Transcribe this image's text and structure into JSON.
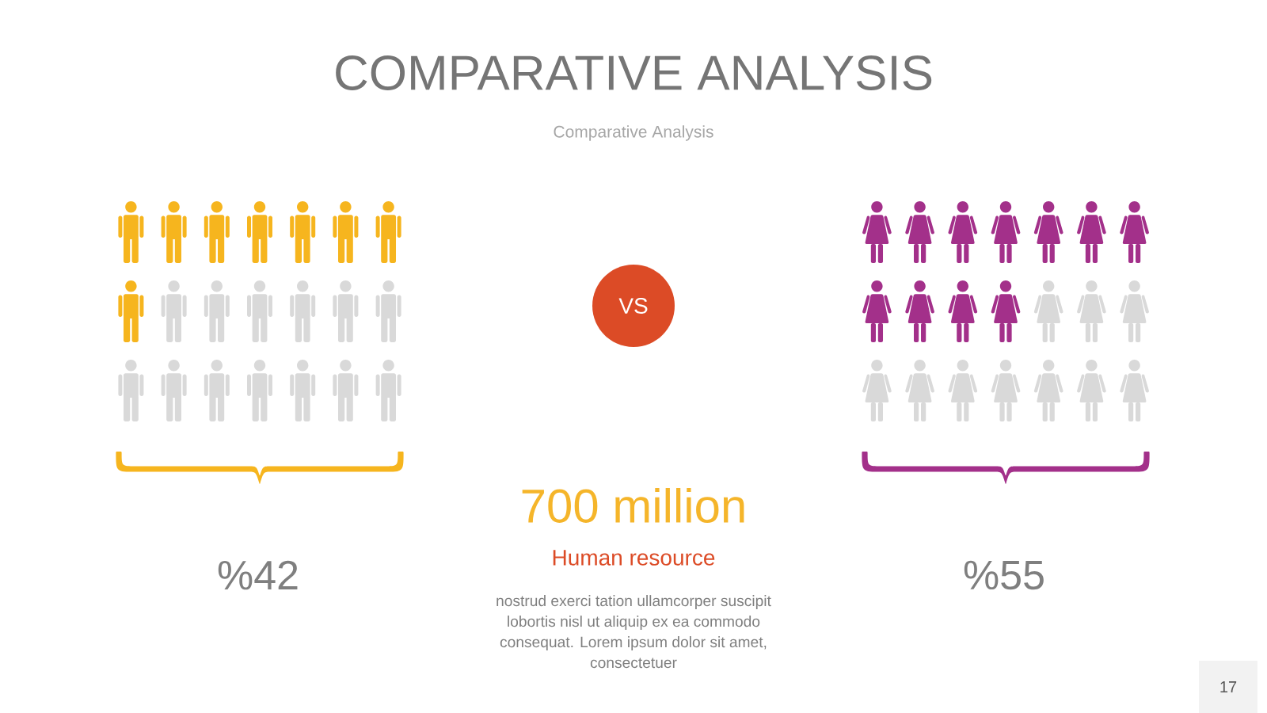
{
  "chart_data": {
    "type": "other",
    "title": "COMPARATIVE ANALYSIS",
    "subtitle": "Comparative Analysis",
    "categories": [
      null,
      null
    ],
    "values": [
      42,
      55
    ],
    "value_labels": [
      "%42",
      "%55"
    ],
    "colors": [
      "#f6b51e",
      "#a3308a"
    ],
    "annotations": [
      "VS",
      "700 million",
      "Human resource",
      "nostrud exerci tation ullamcorper suscipit lobortis nisl ut aliquip ex ea commodo consequat. Lorem ipsum dolor sit amet, consectetuer",
      "17"
    ]
  }
}
